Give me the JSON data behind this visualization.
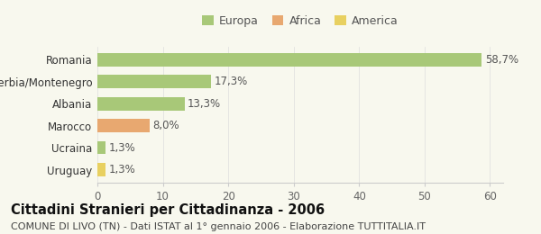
{
  "categories": [
    "Uruguay",
    "Ucraina",
    "Marocco",
    "Albania",
    "Serbia/Montenegro",
    "Romania"
  ],
  "values": [
    1.3,
    1.3,
    8.0,
    13.3,
    17.3,
    58.7
  ],
  "labels": [
    "1,3%",
    "1,3%",
    "8,0%",
    "13,3%",
    "17,3%",
    "58,7%"
  ],
  "colors": [
    "#e8d060",
    "#a8c878",
    "#e8a870",
    "#a8c878",
    "#a8c878",
    "#a8c878"
  ],
  "legend_items": [
    {
      "label": "Europa",
      "color": "#a8c878"
    },
    {
      "label": "Africa",
      "color": "#e8a870"
    },
    {
      "label": "America",
      "color": "#e8d060"
    }
  ],
  "title": "Cittadini Stranieri per Cittadinanza - 2006",
  "subtitle": "COMUNE DI LIVO (TN) - Dati ISTAT al 1° gennaio 2006 - Elaborazione TUTTITALIA.IT",
  "xlim": [
    0,
    62
  ],
  "xticks": [
    0,
    10,
    20,
    30,
    40,
    50,
    60
  ],
  "background_color": "#f8f8ee",
  "title_fontsize": 10.5,
  "subtitle_fontsize": 8.0,
  "tick_fontsize": 8.5,
  "label_fontsize": 8.5,
  "legend_fontsize": 9.0
}
